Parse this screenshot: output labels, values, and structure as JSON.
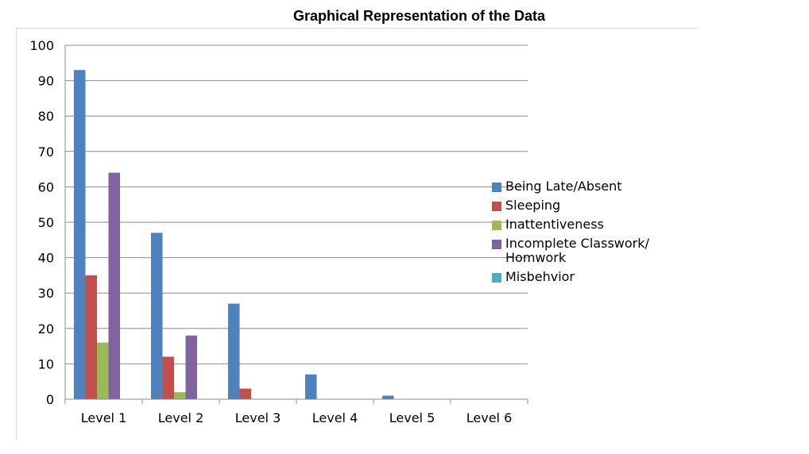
{
  "chart_data": {
    "type": "bar",
    "title": "Graphical Representation of the Data",
    "categories": [
      "Level 1",
      "Level 2",
      "Level 3",
      "Level 4",
      "Level 5",
      "Level 6"
    ],
    "series": [
      {
        "name": "Being Late/Absent",
        "color": "#4f81bd",
        "values": [
          93,
          47,
          27,
          7,
          1,
          0
        ]
      },
      {
        "name": "Sleeping",
        "color": "#c0504d",
        "values": [
          35,
          12,
          3,
          0,
          0,
          0
        ]
      },
      {
        "name": "Inattentiveness",
        "color": "#9bbb59",
        "values": [
          16,
          2,
          0,
          0,
          0,
          0
        ]
      },
      {
        "name": "Incomplete Classwork/ Homwork",
        "color": "#8064a2",
        "values": [
          64,
          18,
          0,
          0,
          0,
          0
        ]
      },
      {
        "name": "Misbehvior",
        "color": "#4bacc6",
        "values": [
          0,
          0,
          0,
          0,
          0,
          0
        ]
      }
    ],
    "xlabel": "",
    "ylabel": "",
    "ylim": [
      0,
      100
    ],
    "yticks": [
      "0",
      "10",
      "20",
      "30",
      "40",
      "50",
      "60",
      "70",
      "80",
      "90",
      "100"
    ],
    "grid": true,
    "legend_position": "right"
  }
}
